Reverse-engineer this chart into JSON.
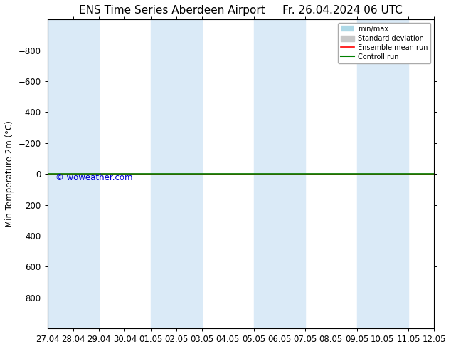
{
  "title": "ENS Time Series Aberdeen Airport",
  "title_right": "Fr. 26.04.2024 06 UTC",
  "ylabel": "Min Temperature 2m (°C)",
  "ylim": [
    -1000,
    1000
  ],
  "yticks": [
    -800,
    -600,
    -400,
    -200,
    0,
    200,
    400,
    600,
    800
  ],
  "xtick_labels": [
    "27.04",
    "28.04",
    "29.04",
    "30.04",
    "01.05",
    "02.05",
    "03.05",
    "04.05",
    "05.05",
    "06.05",
    "07.05",
    "08.05",
    "09.05",
    "10.05",
    "11.05",
    "12.05"
  ],
  "xtick_days": [
    0,
    1,
    2,
    3,
    4,
    5,
    6,
    7,
    8,
    9,
    10,
    11,
    12,
    13,
    14,
    15
  ],
  "shaded_bands": [
    [
      0,
      2
    ],
    [
      4,
      6
    ],
    [
      8,
      10
    ],
    [
      12,
      14
    ]
  ],
  "band_color": "#daeaf7",
  "control_run_y": 0,
  "ensemble_mean_y": 0,
  "control_run_color": "#008000",
  "ensemble_mean_color": "#ff0000",
  "minmax_color": "#add8e6",
  "stddev_color": "#c8c8c8",
  "watermark": "© woweather.com",
  "watermark_color": "#0000cd",
  "background_color": "#ffffff",
  "plot_background": "#ffffff",
  "legend_entries": [
    "min/max",
    "Standard deviation",
    "Ensemble mean run",
    "Controll run"
  ],
  "legend_colors": [
    "#add8e6",
    "#c8c8c8",
    "#ff0000",
    "#008000"
  ],
  "title_fontsize": 11,
  "axis_fontsize": 8.5
}
